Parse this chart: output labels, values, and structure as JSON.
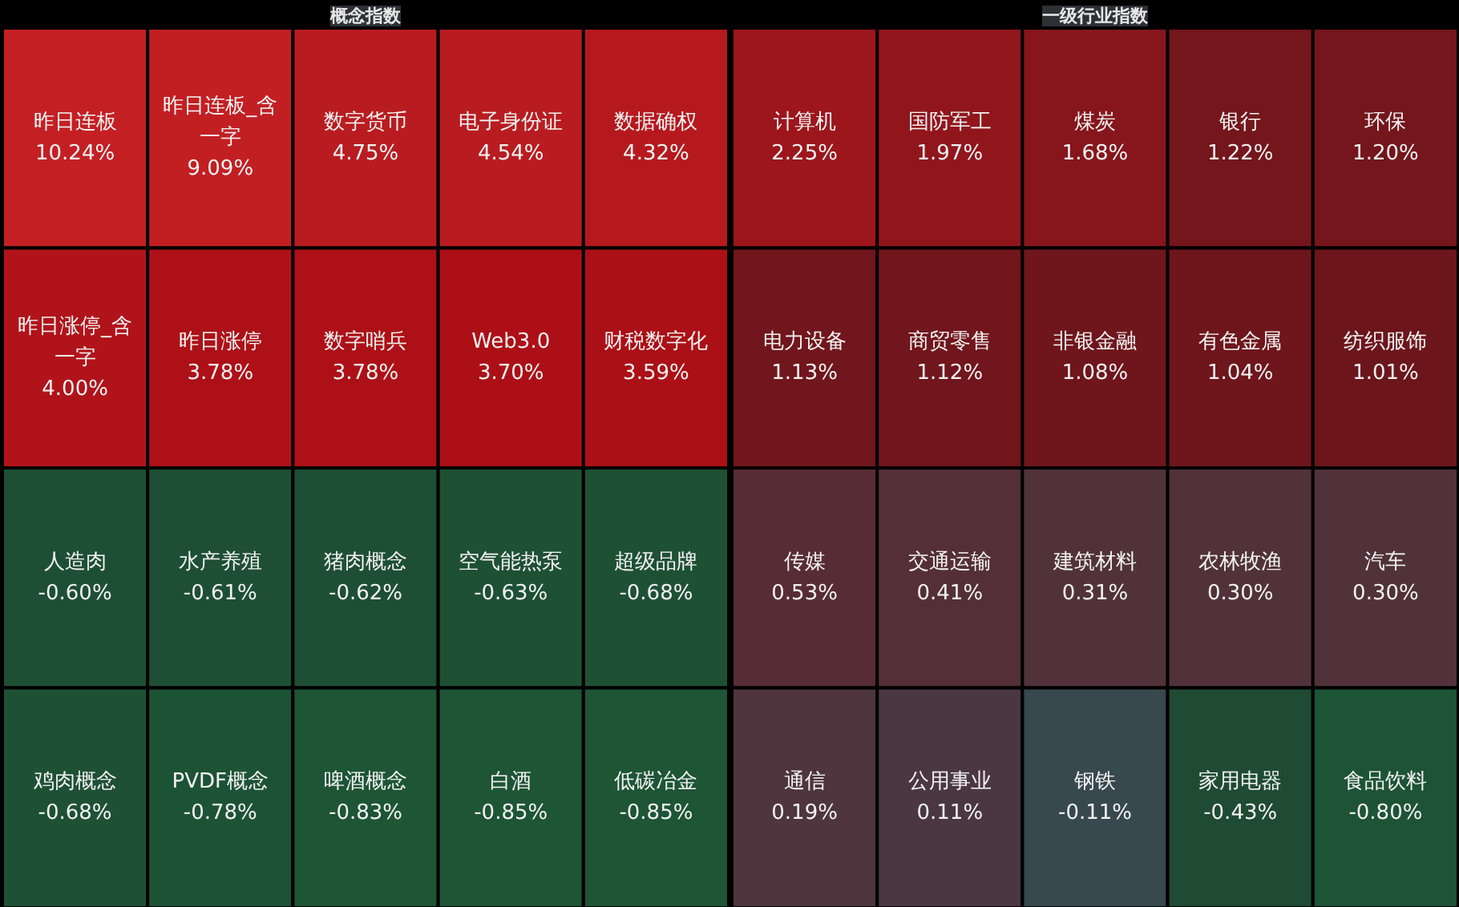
{
  "chart_data": [
    {
      "type": "other",
      "title": "概念指数",
      "categories": [
        "昨日连板",
        "昨日连板_含一字",
        "数字货币",
        "电子身份证",
        "数据确权",
        "昨日涨停_含一字",
        "昨日涨停",
        "数字哨兵",
        "Web3.0",
        "财税数字化",
        "人造肉",
        "水产养殖",
        "猪肉概念",
        "空气能热泵",
        "超级品牌",
        "鸡肉概念",
        "PVDF概念",
        "啤酒概念",
        "白酒",
        "低碳冶金"
      ],
      "values": [
        10.24,
        9.09,
        4.75,
        4.54,
        4.32,
        4.0,
        3.78,
        3.78,
        3.7,
        3.59,
        -0.6,
        -0.61,
        -0.62,
        -0.63,
        -0.68,
        -0.68,
        -0.78,
        -0.83,
        -0.85,
        -0.85
      ],
      "value_labels": [
        "10.24%",
        "9.09%",
        "4.75%",
        "4.54%",
        "4.32%",
        "4.00%",
        "3.78%",
        "3.78%",
        "3.70%",
        "3.59%",
        "-0.60%",
        "-0.61%",
        "-0.62%",
        "-0.63%",
        "-0.68%",
        "-0.68%",
        "-0.78%",
        "-0.83%",
        "-0.85%",
        "-0.85%"
      ]
    },
    {
      "type": "other",
      "title": "一级行业指数",
      "categories": [
        "计算机",
        "国防军工",
        "煤炭",
        "银行",
        "环保",
        "电力设备",
        "商贸零售",
        "非银金融",
        "有色金属",
        "纺织服饰",
        "传媒",
        "交通运输",
        "建筑材料",
        "农林牧渔",
        "汽车",
        "通信",
        "公用事业",
        "钢铁",
        "家用电器",
        "食品饮料"
      ],
      "values": [
        2.25,
        1.97,
        1.68,
        1.22,
        1.2,
        1.13,
        1.12,
        1.08,
        1.04,
        1.01,
        0.53,
        0.41,
        0.31,
        0.3,
        0.3,
        0.19,
        0.11,
        -0.11,
        -0.43,
        -0.8
      ],
      "value_labels": [
        "2.25%",
        "1.97%",
        "1.68%",
        "1.22%",
        "1.20%",
        "1.13%",
        "1.12%",
        "1.08%",
        "1.04%",
        "1.01%",
        "0.53%",
        "0.41%",
        "0.31%",
        "0.30%",
        "0.30%",
        "0.19%",
        "0.11%",
        "-0.11%",
        "-0.43%",
        "-0.80%"
      ]
    }
  ]
}
